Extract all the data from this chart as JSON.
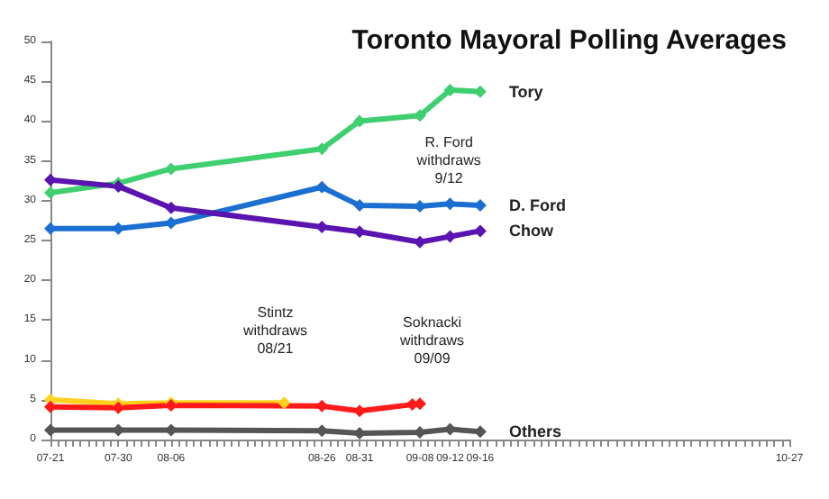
{
  "chart_data": {
    "type": "line",
    "title": "Toronto Mayoral Polling Averages",
    "xlim": [
      "--07-21",
      "--10-27"
    ],
    "xticks": [
      {
        "value": "--07-21",
        "label": "07-21"
      },
      {
        "value": "--07-30",
        "label": "07-30"
      },
      {
        "value": "--08-06",
        "label": "08-06"
      },
      {
        "value": "--08-26",
        "label": "08-26"
      },
      {
        "value": "--08-31",
        "label": "08-31"
      },
      {
        "value": "--09-08",
        "label": "09-08"
      },
      {
        "value": "--09-12",
        "label": "09-12"
      },
      {
        "value": "--09-16",
        "label": "09-16"
      },
      {
        "value": "--10-27",
        "label": "10-27"
      }
    ],
    "ylim": [
      0,
      50
    ],
    "yticks": [
      0,
      5,
      10,
      15,
      20,
      25,
      30,
      35,
      40,
      45,
      50
    ],
    "x": [
      "--07-21",
      "--07-30",
      "--08-06",
      "--08-26",
      "--08-31",
      "--09-08",
      "--09-12",
      "--09-16"
    ],
    "series": [
      {
        "name": "Tory",
        "color": "#3fcf6f",
        "values": [
          31,
          32.2,
          34,
          36.5,
          40,
          40.7,
          43.9,
          43.7
        ]
      },
      {
        "name": "D. Ford",
        "color": "#1a6fd1",
        "values": [
          26.5,
          26.5,
          27.2,
          31.7,
          29.4,
          29.3,
          29.6,
          29.4
        ]
      },
      {
        "name": "Chow",
        "color": "#5a14b0",
        "values": [
          32.6,
          31.8,
          29.1,
          26.7,
          26.1,
          24.8,
          25.5,
          26.2
        ]
      },
      {
        "color": "#ffd21f",
        "x": [
          "--07-21",
          "--07-30",
          "--08-06",
          "--08-21"
        ],
        "values": [
          5,
          4.5,
          4.6,
          4.6
        ]
      },
      {
        "color": "#ff1a1a",
        "x": [
          "--07-21",
          "--07-30",
          "--08-06",
          "--08-26",
          "--08-31",
          "--09-07",
          "--09-08"
        ],
        "values": [
          4.1,
          4,
          4.3,
          4.2,
          3.6,
          4.4,
          4.5
        ]
      },
      {
        "name": "Others",
        "color": "#555555",
        "values": [
          1.2,
          1.2,
          1.2,
          1.1,
          0.8,
          0.9,
          1.3,
          1
        ]
      }
    ],
    "annotations": [
      "Stintz\nwithdraws\n08/21",
      "Soknacki\nwithdraws\n09/09",
      "R. Ford\nwithdraws\n9/12"
    ],
    "grid": false,
    "legend": false,
    "marker": "diamond",
    "line_style": "solid"
  }
}
